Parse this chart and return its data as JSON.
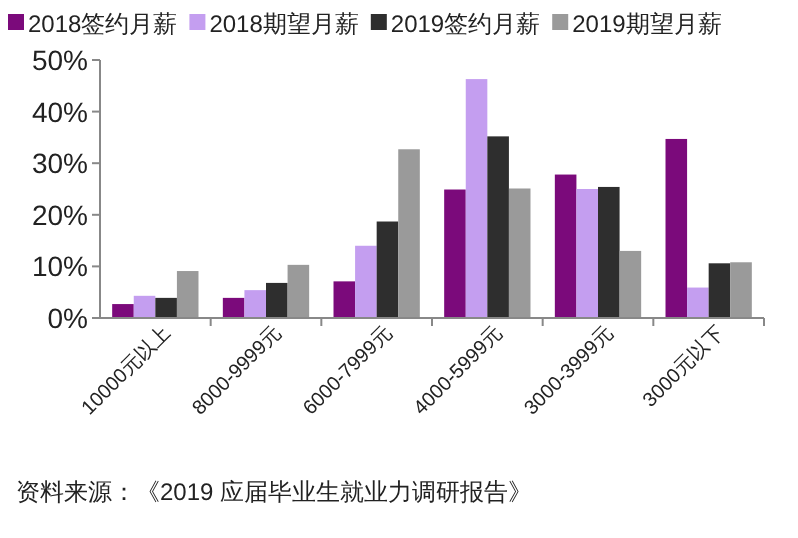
{
  "chart_data": {
    "type": "bar",
    "categories": [
      "10000元以上",
      "8000-9999元",
      "6000-7999元",
      "4000-5999元",
      "3000-3999元",
      "3000元以下"
    ],
    "series": [
      {
        "name": "2018签约月薪",
        "color": "#7b0a7b",
        "values": [
          2.7,
          3.9,
          7.1,
          24.9,
          27.8,
          34.7
        ]
      },
      {
        "name": "2018期望月薪",
        "color": "#c49ef0",
        "values": [
          4.3,
          5.4,
          14.0,
          46.3,
          25.0,
          5.9
        ]
      },
      {
        "name": "2019签约月薪",
        "color": "#2e2e2e",
        "values": [
          3.9,
          6.8,
          18.7,
          35.2,
          25.4,
          10.6
        ]
      },
      {
        "name": "2019期望月薪",
        "color": "#9a9a9a",
        "values": [
          9.1,
          10.3,
          32.7,
          25.1,
          13.0,
          10.8
        ]
      }
    ],
    "ylim": [
      0,
      50
    ],
    "yticks": [
      {
        "value": 0,
        "label": "0%"
      },
      {
        "value": 10,
        "label": "10%"
      },
      {
        "value": 20,
        "label": "20%"
      },
      {
        "value": 30,
        "label": "30%"
      },
      {
        "value": 40,
        "label": "40%"
      },
      {
        "value": 50,
        "label": "50%"
      }
    ],
    "legend": "top",
    "annotations": [
      "资料来源：《2019 应届毕业生就业力调研报告》"
    ]
  }
}
